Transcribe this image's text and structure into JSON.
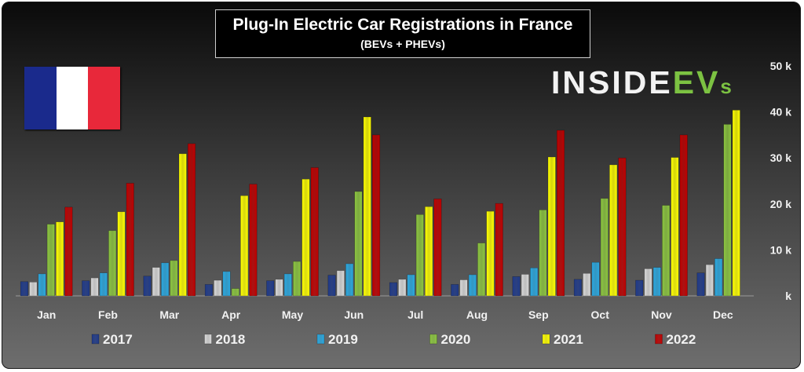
{
  "title": "Plug-In Electric Car Registrations in France",
  "subtitle": "(BEVs + PHEVs)",
  "logo": {
    "text_main": "INSIDE",
    "text_ev": "EV",
    "text_s": "s",
    "accent_color": "#7cc242"
  },
  "flag": {
    "colors": [
      "#1a2a8c",
      "#ffffff",
      "#e8283a"
    ]
  },
  "chart_data": {
    "type": "bar",
    "title": "Plug-In Electric Car Registrations in France",
    "subtitle": "(BEVs + PHEVs)",
    "categories": [
      "Jan",
      "Feb",
      "Mar",
      "Apr",
      "May",
      "Jun",
      "Jul",
      "Aug",
      "Sep",
      "Oct",
      "Nov",
      "Dec"
    ],
    "ylim": [
      0,
      50000
    ],
    "yticks": [
      0,
      10000,
      20000,
      30000,
      40000,
      50000
    ],
    "ytick_labels": [
      "k",
      "10 k",
      "20 k",
      "30 k",
      "40 k",
      "50 k"
    ],
    "grid": false,
    "legend_position": "bottom",
    "series": [
      {
        "name": "2017",
        "color": "#1f3a8a",
        "values": [
          3100,
          3300,
          4300,
          2500,
          3300,
          4500,
          2900,
          2500,
          4200,
          3600,
          3400,
          5000
        ]
      },
      {
        "name": "2018",
        "color": "#d9d9d9",
        "values": [
          3000,
          3900,
          6200,
          3400,
          3600,
          5500,
          3600,
          3500,
          4700,
          4900,
          5900,
          6800
        ]
      },
      {
        "name": "2019",
        "color": "#2aa8e0",
        "values": [
          4800,
          5000,
          7200,
          5300,
          4800,
          7000,
          4600,
          4600,
          6100,
          7300,
          6200,
          8100
        ]
      },
      {
        "name": "2020",
        "color": "#8cc63f",
        "values": [
          15600,
          14200,
          7700,
          1600,
          7500,
          22700,
          17700,
          11500,
          18700,
          21200,
          19700,
          37300
        ]
      },
      {
        "name": "2021",
        "color": "#ffff00",
        "values": [
          16100,
          18300,
          30900,
          21800,
          25400,
          38900,
          19400,
          18400,
          30200,
          28500,
          30100,
          40400
        ]
      },
      {
        "name": "2022",
        "color": "#c00000",
        "values": [
          19300,
          24500,
          33100,
          24300,
          27900,
          35000,
          21100,
          20100,
          36000,
          30000,
          35000,
          null
        ]
      }
    ]
  }
}
